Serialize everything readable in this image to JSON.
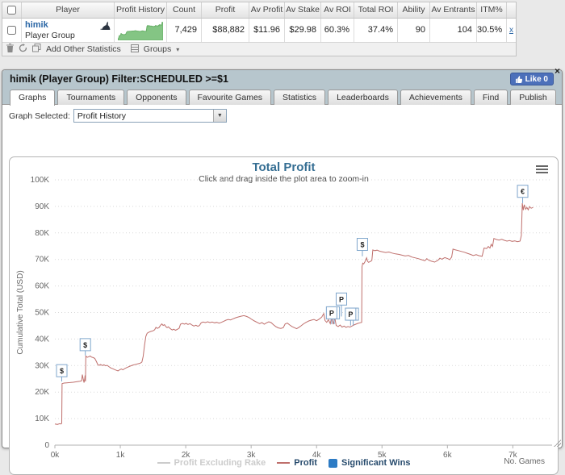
{
  "results_table": {
    "columns": [
      "Player",
      "Profit History",
      "Count",
      "Profit",
      "Av Profit",
      "Av Stake",
      "Av ROI",
      "Total ROI",
      "Ability",
      "Av Entrants",
      "ITM%"
    ],
    "row": {
      "player_name": "himik",
      "player_sub": "Player Group",
      "count": "7,429",
      "profit": "$88,882",
      "av_profit": "$11.96",
      "av_stake": "$29.98",
      "av_roi": "60.3%",
      "total_roi": "37.4%",
      "ability": "90",
      "av_entrants": "104",
      "itm": "30.5%",
      "remove_label": "x"
    },
    "toolbar": {
      "add_other_statistics_label": "Add Other Statistics",
      "groups_label": "Groups",
      "groups_caret": "▾"
    }
  },
  "panel": {
    "title": "himik (Player Group) Filter:SCHEDULED >=$1",
    "like_label": "Like 0",
    "close_glyph": "×",
    "tabs": [
      "Graphs",
      "Tournaments",
      "Opponents",
      "Favourite Games",
      "Statistics",
      "Leaderboards",
      "Achievements",
      "Find",
      "Publish"
    ],
    "active_tab": "Graphs",
    "graph_selected_label": "Graph Selected:",
    "graph_selected_value": "Profit History",
    "select_caret": "▼"
  },
  "chart_data": {
    "type": "line",
    "title": "Total Profit",
    "subtitle": "Click and drag inside the plot area to zoom-in",
    "xlabel": "No. Games",
    "ylabel": "Cumulative Total (USD)",
    "x_ticks": [
      "0k",
      "1k",
      "2k",
      "3k",
      "4k",
      "5k",
      "6k",
      "7k"
    ],
    "y_ticks": [
      "0",
      "10K",
      "20K",
      "30K",
      "40K",
      "50K",
      "60K",
      "70K",
      "80K",
      "90K",
      "100K"
    ],
    "xlim": [
      0,
      7600
    ],
    "ylim": [
      0,
      100000
    ],
    "grid": true,
    "legend": [
      {
        "label": "Profit Excluding Rake",
        "color": "#cccccc",
        "disabled": true
      },
      {
        "label": "Profit",
        "color": "#bf6f6c",
        "disabled": false
      },
      {
        "label": "Significant Wins",
        "color": "#2d7bc4",
        "disabled": false
      }
    ],
    "series": [
      {
        "name": "Profit",
        "color": "#bf6f6c",
        "points": [
          [
            0,
            8000
          ],
          [
            40,
            7800
          ],
          [
            70,
            8100
          ],
          [
            95,
            8000
          ],
          [
            105,
            8300
          ],
          [
            110,
            23200
          ],
          [
            140,
            23400
          ],
          [
            180,
            23500
          ],
          [
            230,
            23600
          ],
          [
            280,
            23700
          ],
          [
            330,
            23900
          ],
          [
            380,
            24100
          ],
          [
            410,
            24300
          ],
          [
            420,
            26600
          ],
          [
            430,
            25200
          ],
          [
            445,
            23600
          ],
          [
            455,
            24800
          ],
          [
            462,
            26300
          ],
          [
            468,
            24000
          ],
          [
            472,
            33600
          ],
          [
            495,
            33100
          ],
          [
            515,
            33300
          ],
          [
            540,
            33600
          ],
          [
            560,
            33200
          ],
          [
            585,
            33000
          ],
          [
            610,
            32700
          ],
          [
            635,
            31500
          ],
          [
            655,
            30400
          ],
          [
            675,
            30100
          ],
          [
            700,
            30400
          ],
          [
            725,
            30000
          ],
          [
            750,
            30300
          ],
          [
            775,
            29900
          ],
          [
            800,
            30100
          ],
          [
            825,
            29600
          ],
          [
            855,
            29100
          ],
          [
            885,
            28800
          ],
          [
            910,
            28500
          ],
          [
            940,
            28200
          ],
          [
            965,
            28000
          ],
          [
            990,
            28400
          ],
          [
            1015,
            28700
          ],
          [
            1040,
            28400
          ],
          [
            1070,
            28900
          ],
          [
            1105,
            29300
          ],
          [
            1150,
            29800
          ],
          [
            1195,
            30200
          ],
          [
            1240,
            30500
          ],
          [
            1275,
            30700
          ],
          [
            1305,
            30900
          ],
          [
            1330,
            31300
          ],
          [
            1350,
            33500
          ],
          [
            1370,
            37500
          ],
          [
            1390,
            41000
          ],
          [
            1410,
            42200
          ],
          [
            1440,
            42600
          ],
          [
            1470,
            42900
          ],
          [
            1500,
            43100
          ],
          [
            1525,
            43500
          ],
          [
            1545,
            44400
          ],
          [
            1565,
            44000
          ],
          [
            1590,
            44300
          ],
          [
            1615,
            45200
          ],
          [
            1635,
            45700
          ],
          [
            1655,
            45100
          ],
          [
            1675,
            45400
          ],
          [
            1695,
            44700
          ],
          [
            1715,
            44300
          ],
          [
            1735,
            44600
          ],
          [
            1755,
            44100
          ],
          [
            1775,
            43700
          ],
          [
            1795,
            43400
          ],
          [
            1815,
            43700
          ],
          [
            1845,
            43300
          ],
          [
            1875,
            43700
          ],
          [
            1900,
            44100
          ],
          [
            1920,
            45600
          ],
          [
            1950,
            45900
          ],
          [
            1980,
            45600
          ],
          [
            2005,
            45900
          ],
          [
            2035,
            45500
          ],
          [
            2065,
            45800
          ],
          [
            2095,
            45300
          ],
          [
            2125,
            44900
          ],
          [
            2155,
            45200
          ],
          [
            2185,
            44800
          ],
          [
            2210,
            45100
          ],
          [
            2235,
            46100
          ],
          [
            2265,
            46400
          ],
          [
            2300,
            46200
          ],
          [
            2335,
            46500
          ],
          [
            2370,
            46200
          ],
          [
            2405,
            46400
          ],
          [
            2440,
            46100
          ],
          [
            2475,
            46300
          ],
          [
            2510,
            46000
          ],
          [
            2545,
            46300
          ],
          [
            2580,
            46700
          ],
          [
            2615,
            47100
          ],
          [
            2650,
            47400
          ],
          [
            2685,
            47200
          ],
          [
            2720,
            47600
          ],
          [
            2760,
            48000
          ],
          [
            2800,
            48300
          ],
          [
            2845,
            48600
          ],
          [
            2890,
            48800
          ],
          [
            2930,
            48500
          ],
          [
            2970,
            48100
          ],
          [
            3010,
            47400
          ],
          [
            3050,
            46800
          ],
          [
            3090,
            46300
          ],
          [
            3130,
            45800
          ],
          [
            3165,
            46200
          ],
          [
            3200,
            45600
          ],
          [
            3235,
            46100
          ],
          [
            3270,
            46500
          ],
          [
            3305,
            46200
          ],
          [
            3340,
            45400
          ],
          [
            3375,
            44700
          ],
          [
            3415,
            44200
          ],
          [
            3455,
            44000
          ],
          [
            3490,
            44300
          ],
          [
            3520,
            45700
          ],
          [
            3555,
            46000
          ],
          [
            3590,
            45300
          ],
          [
            3625,
            44700
          ],
          [
            3660,
            44300
          ],
          [
            3695,
            43900
          ],
          [
            3730,
            44400
          ],
          [
            3765,
            45000
          ],
          [
            3800,
            45700
          ],
          [
            3840,
            46300
          ],
          [
            3880,
            46800
          ],
          [
            3920,
            47100
          ],
          [
            3960,
            47400
          ],
          [
            4000,
            46900
          ],
          [
            4040,
            47500
          ],
          [
            4080,
            48300
          ],
          [
            4110,
            49600
          ],
          [
            4130,
            47000
          ],
          [
            4155,
            46300
          ],
          [
            4180,
            47300
          ],
          [
            4210,
            45800
          ],
          [
            4235,
            48800
          ],
          [
            4255,
            45600
          ],
          [
            4280,
            47800
          ],
          [
            4300,
            45100
          ],
          [
            4330,
            44700
          ],
          [
            4360,
            45300
          ],
          [
            4390,
            44500
          ],
          [
            4420,
            44900
          ],
          [
            4450,
            44400
          ],
          [
            4480,
            44700
          ],
          [
            4510,
            44500
          ],
          [
            4540,
            44900
          ],
          [
            4570,
            45300
          ],
          [
            4600,
            45600
          ],
          [
            4630,
            45900
          ],
          [
            4660,
            46100
          ],
          [
            4690,
            46300
          ],
          [
            4695,
            67200
          ],
          [
            4705,
            68600
          ],
          [
            4720,
            68300
          ],
          [
            4735,
            68900
          ],
          [
            4750,
            69700
          ],
          [
            4765,
            70600
          ],
          [
            4780,
            69300
          ],
          [
            4795,
            68900
          ],
          [
            4820,
            69200
          ],
          [
            4845,
            69600
          ],
          [
            4860,
            73600
          ],
          [
            4890,
            73300
          ],
          [
            4925,
            73500
          ],
          [
            4965,
            73100
          ],
          [
            5005,
            72900
          ],
          [
            5055,
            72600
          ],
          [
            5105,
            72800
          ],
          [
            5155,
            72400
          ],
          [
            5205,
            72100
          ],
          [
            5255,
            71900
          ],
          [
            5305,
            71600
          ],
          [
            5355,
            71300
          ],
          [
            5405,
            71500
          ],
          [
            5455,
            70900
          ],
          [
            5505,
            70600
          ],
          [
            5555,
            70300
          ],
          [
            5605,
            69900
          ],
          [
            5655,
            69500
          ],
          [
            5685,
            70300
          ],
          [
            5715,
            69700
          ],
          [
            5760,
            69300
          ],
          [
            5805,
            69000
          ],
          [
            5855,
            69700
          ],
          [
            5885,
            70500
          ],
          [
            5915,
            70100
          ],
          [
            5960,
            70700
          ],
          [
            6005,
            70300
          ],
          [
            6035,
            69900
          ],
          [
            6065,
            70900
          ],
          [
            6085,
            73900
          ],
          [
            6125,
            73600
          ],
          [
            6170,
            73300
          ],
          [
            6215,
            73000
          ],
          [
            6260,
            72700
          ],
          [
            6305,
            72300
          ],
          [
            6350,
            71900
          ],
          [
            6395,
            71500
          ],
          [
            6440,
            71800
          ],
          [
            6485,
            71400
          ],
          [
            6530,
            71200
          ],
          [
            6560,
            74300
          ],
          [
            6600,
            74100
          ],
          [
            6625,
            74900
          ],
          [
            6650,
            74300
          ],
          [
            6670,
            75700
          ],
          [
            6690,
            74900
          ],
          [
            6710,
            77900
          ],
          [
            6750,
            77500
          ],
          [
            6790,
            77300
          ],
          [
            6830,
            77600
          ],
          [
            6870,
            77200
          ],
          [
            6910,
            76900
          ],
          [
            6950,
            77100
          ],
          [
            6990,
            76800
          ],
          [
            7030,
            77000
          ],
          [
            7070,
            76700
          ],
          [
            7110,
            76900
          ],
          [
            7130,
            79000
          ],
          [
            7145,
            91200
          ],
          [
            7160,
            88600
          ],
          [
            7175,
            90600
          ],
          [
            7195,
            88900
          ],
          [
            7215,
            89600
          ],
          [
            7235,
            88700
          ],
          [
            7255,
            89900
          ],
          [
            7280,
            89300
          ],
          [
            7310,
            89600
          ]
        ]
      }
    ],
    "flags": [
      {
        "glyph": "$",
        "x": 105,
        "box_y": 25800,
        "stem_y": 24000
      },
      {
        "glyph": "$",
        "x": 465,
        "box_y": 35600,
        "stem_y": 33800
      },
      {
        "glyph": "P",
        "x": 4270,
        "box_y": 47600,
        "stem_y": 45600
      },
      {
        "glyph": "P",
        "x": 4230,
        "box_y": 47600,
        "stem_y": 45600
      },
      {
        "glyph": "P",
        "x": 4560,
        "box_y": 47100,
        "stem_y": 45100
      },
      {
        "glyph": "P",
        "x": 4520,
        "box_y": 47100,
        "stem_y": 45100
      },
      {
        "glyph": "P",
        "x": 4380,
        "box_y": 52800,
        "stem_y": 48500
      },
      {
        "glyph": "$",
        "x": 4700,
        "box_y": 73400,
        "stem_y": 71200
      },
      {
        "glyph": "€",
        "x": 7150,
        "box_y": 93400,
        "stem_y": 91200
      }
    ]
  }
}
